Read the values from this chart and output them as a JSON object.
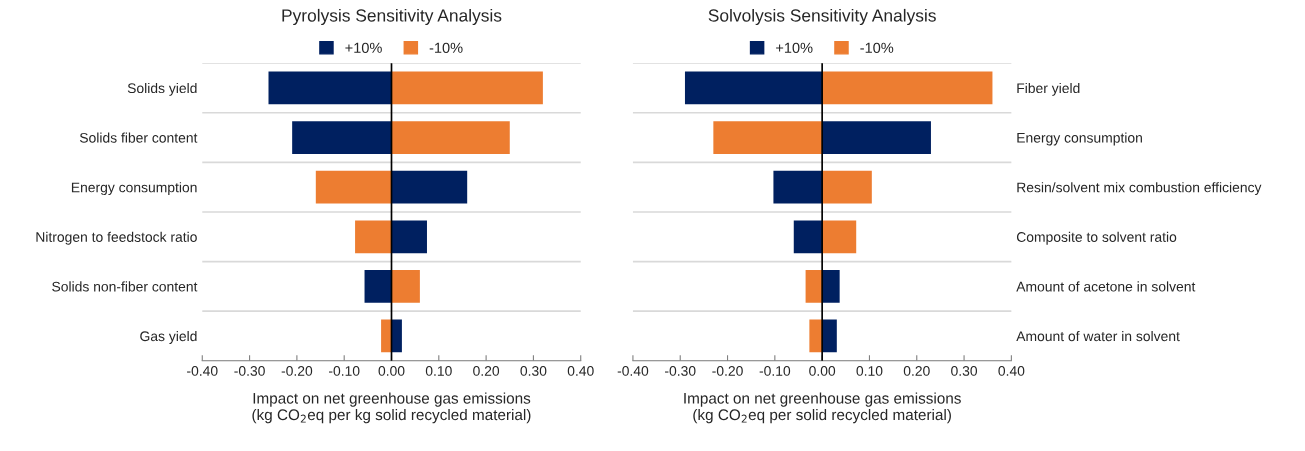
{
  "chart_data": [
    {
      "type": "bar",
      "orientation": "horizontal",
      "title": "Pyrolysis Sensitivity Analysis",
      "xlabel": "Impact on net greenhouse gas emissions\n(kg CO$_{2}$eq per kg solid recycled material)",
      "categories": [
        "Solids yield",
        "Solids fiber content",
        "Energy consumption",
        "Nitrogen to feedstock ratio",
        "Solids non-fiber content",
        "Gas yield"
      ],
      "series": [
        {
          "name": "+10%",
          "color": "#002060",
          "values": [
            -0.26,
            -0.21,
            0.16,
            0.075,
            -0.057,
            0.022
          ]
        },
        {
          "name": "-10%",
          "color": "#ed7d31",
          "values": [
            0.32,
            0.25,
            -0.16,
            -0.077,
            0.06,
            -0.022
          ]
        }
      ],
      "stacked": true,
      "xlim": [
        -0.4,
        0.4
      ],
      "xticks": [
        {
          "value": -0.4,
          "label": "-0.40"
        },
        {
          "value": -0.3,
          "label": "-0.30"
        },
        {
          "value": -0.2,
          "label": "-0.20"
        },
        {
          "value": -0.1,
          "label": "-0.10"
        },
        {
          "value": 0,
          "label": "0.00"
        },
        {
          "value": 0.1,
          "label": "0.10"
        },
        {
          "value": 0.2,
          "label": "0.20"
        },
        {
          "value": 0.3,
          "label": "0.30"
        },
        {
          "value": 0.4,
          "label": "0.40"
        }
      ],
      "ref_lines": [
        {
          "axis": "x",
          "value": 0,
          "color": "#000000"
        }
      ],
      "grid": "y",
      "legend": "top"
    },
    {
      "type": "bar",
      "orientation": "horizontal",
      "title": "Solvolysis Sensitivity Analysis",
      "xlabel": "Impact on net greenhouse gas emissions\n(kg CO$_{2}$eq per solid recycled material)",
      "categories": [
        "Fiber yield",
        "Energy consumption",
        "Resin/solvent mix combustion efficiency",
        "Composite to solvent ratio",
        "Amount of acetone in solvent",
        "Amount of water in solvent"
      ],
      "series": [
        {
          "name": "+10%",
          "color": "#002060",
          "values": [
            -0.29,
            0.23,
            -0.103,
            -0.06,
            0.037,
            0.031
          ]
        },
        {
          "name": "-10%",
          "color": "#ed7d31",
          "values": [
            0.36,
            -0.23,
            0.105,
            0.072,
            -0.035,
            -0.027
          ]
        }
      ],
      "stacked": true,
      "xlim": [
        -0.4,
        0.4
      ],
      "xticks": [
        {
          "value": -0.4,
          "label": "-0.40"
        },
        {
          "value": -0.3,
          "label": "-0.30"
        },
        {
          "value": -0.2,
          "label": "-0.20"
        },
        {
          "value": -0.1,
          "label": "-0.10"
        },
        {
          "value": 0,
          "label": "0.00"
        },
        {
          "value": 0.1,
          "label": "0.10"
        },
        {
          "value": 0.2,
          "label": "0.20"
        },
        {
          "value": 0.3,
          "label": "0.30"
        },
        {
          "value": 0.4,
          "label": "0.40"
        }
      ],
      "ref_lines": [
        {
          "axis": "x",
          "value": 0,
          "color": "#000000"
        }
      ],
      "grid": "y",
      "legend": "top"
    }
  ]
}
